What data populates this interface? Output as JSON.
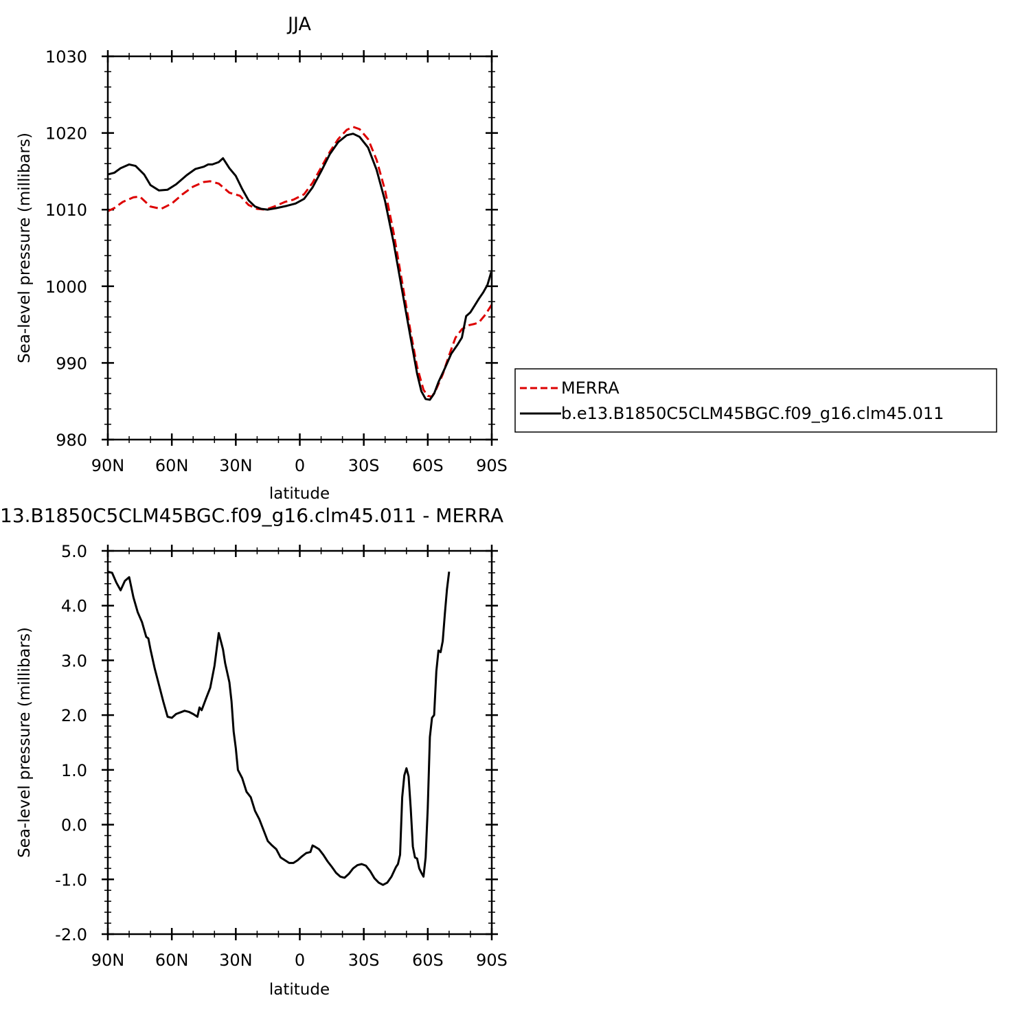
{
  "chart_data": [
    {
      "type": "line",
      "title": "JJA",
      "xlabel": "latitude",
      "ylabel": "Sea-level pressure (millibars)",
      "xlim": [
        90,
        -90
      ],
      "ylim": [
        980,
        1030
      ],
      "x_ticks": [
        90,
        60,
        30,
        0,
        -30,
        -60,
        -90
      ],
      "x_tick_labels": [
        "90N",
        "60N",
        "30N",
        "0",
        "30S",
        "60S",
        "90S"
      ],
      "y_ticks": [
        980,
        990,
        1000,
        1010,
        1020,
        1030
      ],
      "y_tick_labels": [
        "980",
        "990",
        "1000",
        "1010",
        "1020",
        "1030"
      ],
      "legend_position": "right",
      "series": [
        {
          "name": "MERRA",
          "color": "#dd0000",
          "dash": true,
          "points": [
            [
              90,
              1009.8
            ],
            [
              87,
              1010.2
            ],
            [
              83,
              1011.0
            ],
            [
              78,
              1011.6
            ],
            [
              75,
              1011.7
            ],
            [
              70,
              1010.4
            ],
            [
              65,
              1010.1
            ],
            [
              60,
              1010.8
            ],
            [
              55,
              1012.0
            ],
            [
              50,
              1013.0
            ],
            [
              45,
              1013.6
            ],
            [
              42,
              1013.7
            ],
            [
              38,
              1013.4
            ],
            [
              33,
              1012.2
            ],
            [
              28,
              1011.8
            ],
            [
              24,
              1010.6
            ],
            [
              20,
              1010.1
            ],
            [
              16,
              1010.0
            ],
            [
              12,
              1010.4
            ],
            [
              7,
              1011.0
            ],
            [
              3,
              1011.3
            ],
            [
              -2,
              1012.0
            ],
            [
              -6,
              1013.5
            ],
            [
              -10,
              1015.5
            ],
            [
              -14,
              1017.5
            ],
            [
              -18,
              1019.2
            ],
            [
              -22,
              1020.4
            ],
            [
              -25,
              1020.8
            ],
            [
              -28,
              1020.5
            ],
            [
              -32,
              1019.2
            ],
            [
              -36,
              1016.5
            ],
            [
              -40,
              1012.5
            ],
            [
              -44,
              1007.0
            ],
            [
              -48,
              1000.5
            ],
            [
              -52,
              994.0
            ],
            [
              -55,
              989.5
            ],
            [
              -58,
              986.5
            ],
            [
              -60,
              985.7
            ],
            [
              -62,
              985.6
            ],
            [
              -64,
              986.6
            ],
            [
              -67,
              988.5
            ],
            [
              -70,
              991.0
            ],
            [
              -73,
              993.3
            ],
            [
              -76,
              994.4
            ],
            [
              -79,
              994.9
            ],
            [
              -82,
              995.1
            ],
            [
              -84,
              995.3
            ],
            [
              -87,
              996.3
            ],
            [
              -90,
              997.6
            ]
          ]
        },
        {
          "name": "b.e13.B1850C5CLM45BGC.f09_g16.clm45.011",
          "color": "#000000",
          "dash": false,
          "points": [
            [
              90,
              1014.6
            ],
            [
              87,
              1014.8
            ],
            [
              84,
              1015.4
            ],
            [
              80,
              1015.9
            ],
            [
              77,
              1015.7
            ],
            [
              73,
              1014.6
            ],
            [
              70,
              1013.2
            ],
            [
              66,
              1012.5
            ],
            [
              62,
              1012.6
            ],
            [
              58,
              1013.3
            ],
            [
              53,
              1014.5
            ],
            [
              49,
              1015.3
            ],
            [
              45,
              1015.6
            ],
            [
              43,
              1015.9
            ],
            [
              41,
              1015.9
            ],
            [
              38,
              1016.2
            ],
            [
              36,
              1016.7
            ],
            [
              33,
              1015.4
            ],
            [
              30,
              1014.4
            ],
            [
              27,
              1012.7
            ],
            [
              24,
              1011.2
            ],
            [
              21,
              1010.4
            ],
            [
              18,
              1010.1
            ],
            [
              15,
              1010.0
            ],
            [
              11,
              1010.2
            ],
            [
              6,
              1010.5
            ],
            [
              2,
              1010.8
            ],
            [
              -2,
              1011.4
            ],
            [
              -6,
              1012.9
            ],
            [
              -10,
              1015.0
            ],
            [
              -14,
              1017.2
            ],
            [
              -18,
              1018.8
            ],
            [
              -22,
              1019.7
            ],
            [
              -25,
              1019.9
            ],
            [
              -28,
              1019.5
            ],
            [
              -32,
              1018.1
            ],
            [
              -36,
              1015.2
            ],
            [
              -40,
              1011.1
            ],
            [
              -44,
              1005.7
            ],
            [
              -48,
              999.4
            ],
            [
              -52,
              993.2
            ],
            [
              -55,
              988.6
            ],
            [
              -57,
              986.3
            ],
            [
              -59,
              985.3
            ],
            [
              -61,
              985.2
            ],
            [
              -63,
              986.0
            ],
            [
              -65,
              987.5
            ],
            [
              -68,
              989.3
            ],
            [
              -71,
              991.2
            ],
            [
              -74,
              992.4
            ],
            [
              -76,
              993.3
            ],
            [
              -78,
              996.1
            ],
            [
              -80,
              996.6
            ],
            [
              -82,
              997.5
            ],
            [
              -84,
              998.4
            ],
            [
              -86,
              999.2
            ],
            [
              -88,
              1000.2
            ],
            [
              -90,
              1002.1
            ]
          ]
        }
      ]
    },
    {
      "type": "line",
      "title": "13.B1850C5CLM45BGC.f09_g16.clm45.011 - MERRA",
      "xlabel": "latitude",
      "ylabel": "Sea-level pressure (millibars)",
      "xlim": [
        90,
        -90
      ],
      "ylim": [
        -2.0,
        5.0
      ],
      "x_ticks": [
        90,
        60,
        30,
        0,
        -30,
        -60,
        -90
      ],
      "x_tick_labels": [
        "90N",
        "60N",
        "30N",
        "0",
        "30S",
        "60S",
        "90S"
      ],
      "y_ticks": [
        -2,
        -1,
        0,
        1,
        2,
        3,
        4,
        5
      ],
      "y_tick_labels": [
        "-2.0",
        "-1.0",
        "0.0",
        "1.0",
        "2.0",
        "3.0",
        "4.0",
        "5.0"
      ],
      "series": [
        {
          "color": "#000000",
          "dash": false,
          "points": [
            [
              90,
              4.62
            ],
            [
              88,
              4.6
            ],
            [
              86,
              4.42
            ],
            [
              84,
              4.28
            ],
            [
              82,
              4.45
            ],
            [
              80,
              4.52
            ],
            [
              78,
              4.15
            ],
            [
              76,
              3.88
            ],
            [
              74,
              3.7
            ],
            [
              72,
              3.43
            ],
            [
              71,
              3.4
            ],
            [
              70,
              3.2
            ],
            [
              68,
              2.85
            ],
            [
              66,
              2.55
            ],
            [
              64,
              2.25
            ],
            [
              62,
              1.97
            ],
            [
              60,
              1.95
            ],
            [
              58,
              2.02
            ],
            [
              56,
              2.05
            ],
            [
              54,
              2.08
            ],
            [
              52,
              2.06
            ],
            [
              50,
              2.02
            ],
            [
              48,
              1.97
            ],
            [
              47,
              2.14
            ],
            [
              46,
              2.09
            ],
            [
              44,
              2.3
            ],
            [
              42,
              2.5
            ],
            [
              40,
              2.9
            ],
            [
              38,
              3.5
            ],
            [
              37,
              3.35
            ],
            [
              36,
              3.2
            ],
            [
              35,
              2.95
            ],
            [
              33,
              2.6
            ],
            [
              32,
              2.25
            ],
            [
              31,
              1.7
            ],
            [
              30,
              1.4
            ],
            [
              29,
              1.0
            ],
            [
              27,
              0.85
            ],
            [
              25,
              0.6
            ],
            [
              23,
              0.5
            ],
            [
              21,
              0.25
            ],
            [
              19,
              0.1
            ],
            [
              17,
              -0.1
            ],
            [
              15,
              -0.3
            ],
            [
              13,
              -0.38
            ],
            [
              11,
              -0.45
            ],
            [
              9,
              -0.6
            ],
            [
              7,
              -0.65
            ],
            [
              5,
              -0.7
            ],
            [
              3,
              -0.7
            ],
            [
              1,
              -0.65
            ],
            [
              -1,
              -0.58
            ],
            [
              -3,
              -0.52
            ],
            [
              -5,
              -0.5
            ],
            [
              -6,
              -0.38
            ],
            [
              -7,
              -0.4
            ],
            [
              -9,
              -0.45
            ],
            [
              -11,
              -0.55
            ],
            [
              -13,
              -0.67
            ],
            [
              -15,
              -0.77
            ],
            [
              -17,
              -0.88
            ],
            [
              -19,
              -0.95
            ],
            [
              -21,
              -0.97
            ],
            [
              -23,
              -0.9
            ],
            [
              -25,
              -0.8
            ],
            [
              -27,
              -0.74
            ],
            [
              -29,
              -0.72
            ],
            [
              -31,
              -0.75
            ],
            [
              -33,
              -0.85
            ],
            [
              -35,
              -0.98
            ],
            [
              -37,
              -1.06
            ],
            [
              -39,
              -1.1
            ],
            [
              -41,
              -1.06
            ],
            [
              -43,
              -0.95
            ],
            [
              -45,
              -0.78
            ],
            [
              -46,
              -0.72
            ],
            [
              -47,
              -0.55
            ],
            [
              -48,
              0.5
            ],
            [
              -49,
              0.9
            ],
            [
              -50,
              1.03
            ],
            [
              -51,
              0.88
            ],
            [
              -52,
              0.3
            ],
            [
              -53,
              -0.4
            ],
            [
              -54,
              -0.6
            ],
            [
              -55,
              -0.62
            ],
            [
              -56,
              -0.8
            ],
            [
              -57,
              -0.88
            ],
            [
              -58,
              -0.95
            ],
            [
              -59,
              -0.6
            ],
            [
              -60,
              0.3
            ],
            [
              -61,
              1.6
            ],
            [
              -62,
              1.95
            ],
            [
              -63,
              2.0
            ],
            [
              -64,
              2.8
            ],
            [
              -65,
              3.18
            ],
            [
              -66,
              3.15
            ],
            [
              -67,
              3.35
            ],
            [
              -68,
              3.85
            ],
            [
              -69,
              4.3
            ],
            [
              -70,
              4.62
            ]
          ]
        }
      ]
    }
  ]
}
